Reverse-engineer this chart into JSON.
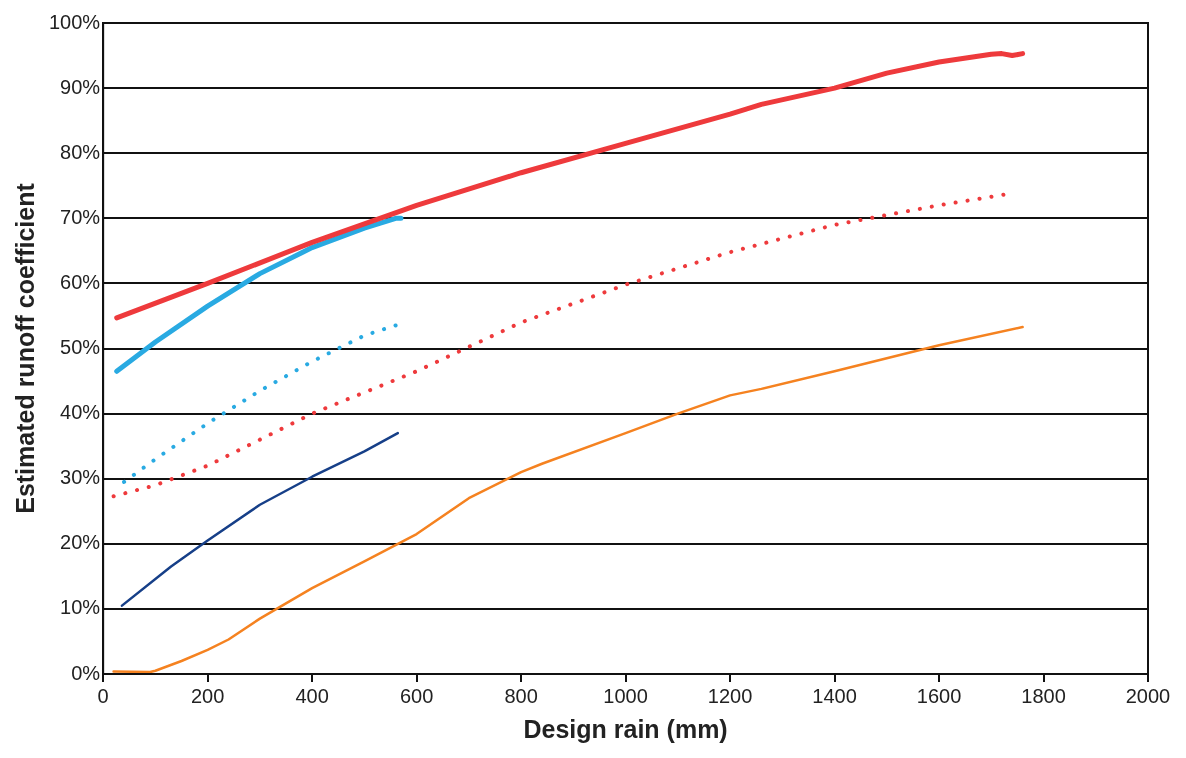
{
  "chart_data": {
    "type": "line",
    "xlabel": "Design rain (mm)",
    "ylabel": "Estimated runoff coefficient",
    "xlim": [
      0,
      2000
    ],
    "xticks": [
      0,
      200,
      400,
      600,
      800,
      1000,
      1200,
      1400,
      1600,
      1800,
      2000
    ],
    "ylim": [
      0,
      100
    ],
    "yticks": [
      {
        "value": 0,
        "label": "0%"
      },
      {
        "value": 10,
        "label": "10%"
      },
      {
        "value": 20,
        "label": "20%"
      },
      {
        "value": 30,
        "label": "30%"
      },
      {
        "value": 40,
        "label": "40%"
      },
      {
        "value": 50,
        "label": "50%"
      },
      {
        "value": 60,
        "label": "60%"
      },
      {
        "value": 70,
        "label": "70%"
      },
      {
        "value": 80,
        "label": "80%"
      },
      {
        "value": 90,
        "label": "90%"
      },
      {
        "value": 100,
        "label": "100%"
      }
    ],
    "grid": "y",
    "legend": false,
    "marker": "none",
    "series": [
      {
        "color": "#ee3a3c",
        "line_style": "solid",
        "x": [
          26,
          200,
          400,
          600,
          800,
          1000,
          1200,
          1260,
          1400,
          1500,
          1600,
          1700,
          1720,
          1740,
          1760
        ],
        "values": [
          54.7,
          60,
          66.3,
          72,
          77,
          81.5,
          86,
          87.5,
          90,
          92.3,
          94,
          95.2,
          95.3,
          95,
          95.3
        ]
      },
      {
        "color": "#29aae2",
        "line_style": "solid",
        "x": [
          26,
          100,
          200,
          300,
          400,
          500,
          560,
          570
        ],
        "values": [
          46.5,
          51,
          56.5,
          61.5,
          65.5,
          68.5,
          70,
          70
        ]
      },
      {
        "color": "#29aae2",
        "line_style": "dotted",
        "x": [
          40,
          100,
          200,
          300,
          400,
          500,
          570
        ],
        "values": [
          29.5,
          33,
          38.5,
          43.5,
          48,
          52,
          53.8
        ]
      },
      {
        "color": "#ee3a3c",
        "line_style": "dotted",
        "x": [
          20,
          100,
          200,
          400,
          600,
          800,
          1000,
          1200,
          1400,
          1600,
          1730
        ],
        "values": [
          27.3,
          29,
          32,
          40,
          46.5,
          54,
          59.8,
          64.8,
          69,
          72,
          73.7
        ]
      },
      {
        "color": "#163f88",
        "line_style": "solid",
        "x": [
          36,
          130,
          200,
          300,
          400,
          500,
          564
        ],
        "values": [
          10.5,
          16.5,
          20.5,
          26,
          30.3,
          34.2,
          37
        ]
      },
      {
        "color": "#f58220",
        "line_style": "solid",
        "x": [
          20,
          90,
          100,
          150,
          200,
          240,
          300,
          400,
          500,
          600,
          700,
          800,
          840,
          1000,
          1100,
          1200,
          1260,
          1400,
          1600,
          1760
        ],
        "values": [
          0.4,
          0.3,
          0.5,
          2,
          3.7,
          5.3,
          8.5,
          13.2,
          17.3,
          21.5,
          27,
          31,
          32.3,
          37,
          40,
          42.8,
          43.8,
          46.5,
          50.5,
          53.3
        ]
      }
    ]
  }
}
